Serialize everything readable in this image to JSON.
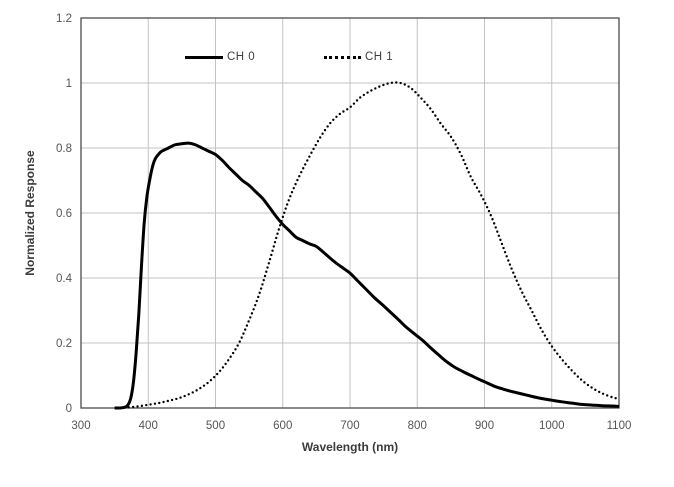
{
  "chart_data": {
    "type": "line",
    "title": "",
    "xlabel": "Wavelength (nm)",
    "ylabel": "Normalized Response",
    "xlim": [
      300,
      1100
    ],
    "ylim": [
      0,
      1.2
    ],
    "x_ticks": [
      300,
      400,
      500,
      600,
      700,
      800,
      900,
      1000,
      1100
    ],
    "y_tick_labels": [
      "0",
      "0.2",
      "0.4",
      "0.6",
      "0.8",
      "1",
      "1.2"
    ],
    "grid": true,
    "legend_position": "top-inside",
    "colors": {
      "curve": "#000000",
      "grid": "#c3c3c3",
      "border": "#4a4a4a",
      "tick_text": "#555555",
      "title_text": "#3a3a3a",
      "background": "#ffffff"
    },
    "series": [
      {
        "name": "CH 0",
        "style": "solid",
        "color": "#000000",
        "x": [
          350,
          358,
          366,
          370,
          374,
          378,
          382,
          386,
          390,
          394,
          398,
          402,
          406,
          410,
          415,
          420,
          430,
          440,
          450,
          460,
          470,
          480,
          490,
          500,
          510,
          520,
          530,
          540,
          550,
          560,
          570,
          580,
          590,
          600,
          610,
          620,
          630,
          640,
          650,
          660,
          670,
          680,
          690,
          700,
          712,
          724,
          736,
          748,
          760,
          772,
          784,
          796,
          808,
          820,
          832,
          844,
          856,
          868,
          880,
          892,
          904,
          916,
          928,
          940,
          952,
          964,
          976,
          988,
          1000,
          1015,
          1030,
          1045,
          1060,
          1075,
          1090,
          1100
        ],
        "values": [
          0,
          0,
          0.003,
          0.01,
          0.03,
          0.08,
          0.17,
          0.29,
          0.44,
          0.57,
          0.65,
          0.7,
          0.74,
          0.765,
          0.78,
          0.79,
          0.8,
          0.81,
          0.813,
          0.815,
          0.81,
          0.8,
          0.79,
          0.78,
          0.762,
          0.74,
          0.72,
          0.7,
          0.685,
          0.665,
          0.645,
          0.618,
          0.59,
          0.565,
          0.545,
          0.525,
          0.515,
          0.505,
          0.497,
          0.48,
          0.462,
          0.445,
          0.43,
          0.415,
          0.39,
          0.365,
          0.34,
          0.318,
          0.295,
          0.272,
          0.248,
          0.228,
          0.208,
          0.185,
          0.163,
          0.142,
          0.125,
          0.112,
          0.1,
          0.088,
          0.077,
          0.066,
          0.058,
          0.051,
          0.045,
          0.039,
          0.033,
          0.028,
          0.024,
          0.019,
          0.015,
          0.011,
          0.009,
          0.007,
          0.006,
          0.005
        ]
      },
      {
        "name": "CH 1",
        "style": "dotted",
        "color": "#000000",
        "x": [
          358,
          370,
          385,
          400,
          415,
          430,
          445,
          460,
          475,
          490,
          505,
          520,
          535,
          550,
          565,
          580,
          595,
          610,
          625,
          640,
          655,
          670,
          685,
          700,
          715,
          730,
          745,
          760,
          775,
          790,
          805,
          820,
          835,
          850,
          865,
          880,
          895,
          910,
          925,
          940,
          955,
          970,
          985,
          1000,
          1015,
          1030,
          1045,
          1060,
          1075,
          1090,
          1100
        ],
        "values": [
          0,
          0.002,
          0.005,
          0.01,
          0.015,
          0.022,
          0.03,
          0.042,
          0.058,
          0.08,
          0.11,
          0.15,
          0.2,
          0.27,
          0.35,
          0.45,
          0.555,
          0.645,
          0.715,
          0.775,
          0.83,
          0.875,
          0.905,
          0.925,
          0.955,
          0.975,
          0.99,
          1.0,
          1.0,
          0.985,
          0.955,
          0.92,
          0.875,
          0.835,
          0.78,
          0.71,
          0.655,
          0.59,
          0.51,
          0.43,
          0.36,
          0.3,
          0.24,
          0.19,
          0.15,
          0.115,
          0.085,
          0.062,
          0.045,
          0.033,
          0.028
        ]
      }
    ]
  }
}
